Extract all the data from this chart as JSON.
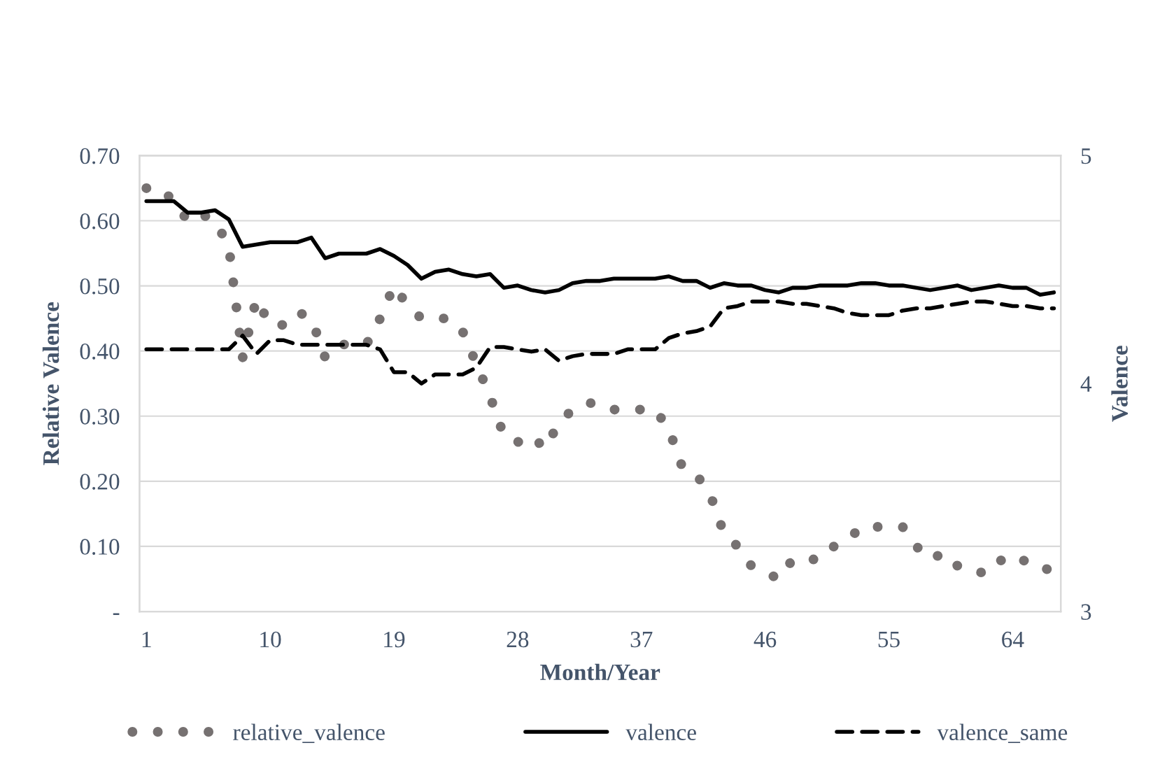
{
  "chart_data": {
    "type": "line",
    "xlabel": "Month/Year",
    "ylabel": "Relative Valence",
    "y2label": "Valence",
    "x": [
      1,
      2,
      3,
      4,
      5,
      6,
      7,
      8,
      9,
      10,
      11,
      12,
      13,
      14,
      15,
      16,
      17,
      18,
      19,
      20,
      21,
      22,
      23,
      24,
      25,
      26,
      27,
      28,
      29,
      30,
      31,
      32,
      33,
      34,
      35,
      36,
      37,
      38,
      39,
      40,
      41,
      42,
      43,
      44,
      45,
      46,
      47,
      48,
      49,
      50,
      51,
      52,
      53,
      54,
      55,
      56,
      57,
      58,
      59,
      60,
      61,
      62,
      63,
      64,
      65,
      66,
      67
    ],
    "xlim": [
      0.5,
      67.5
    ],
    "xticks": [
      1,
      10,
      19,
      28,
      37,
      46,
      55,
      64
    ],
    "ylim": [
      0,
      0.7
    ],
    "yticks": [
      {
        "value": 0,
        "label": "-"
      },
      {
        "value": 0.1,
        "label": "0.10"
      },
      {
        "value": 0.2,
        "label": "0.20"
      },
      {
        "value": 0.3,
        "label": "0.30"
      },
      {
        "value": 0.4,
        "label": "0.40"
      },
      {
        "value": 0.5,
        "label": "0.50"
      },
      {
        "value": 0.6,
        "label": "0.60"
      },
      {
        "value": 0.7,
        "label": "0.70"
      }
    ],
    "y2lim": [
      3,
      5
    ],
    "y2ticks": [
      3,
      4,
      5
    ],
    "grid": "y",
    "legend": "bottom",
    "series": [
      {
        "name": "relative_valence",
        "color": "#767171",
        "line_style": "dotted",
        "values": [
          0.65,
          0.65,
          0.63,
          0.6,
          0.61,
          0.6,
          0.56,
          0.39,
          0.48,
          0.44,
          0.44,
          0.46,
          0.45,
          0.39,
          0.41,
          0.41,
          0.41,
          0.45,
          0.5,
          0.47,
          0.45,
          0.45,
          0.45,
          0.43,
          0.38,
          0.33,
          0.27,
          0.26,
          0.27,
          0.25,
          0.29,
          0.31,
          0.32,
          0.32,
          0.31,
          0.31,
          0.31,
          0.31,
          0.28,
          0.22,
          0.21,
          0.18,
          0.12,
          0.1,
          0.07,
          0.06,
          0.05,
          0.08,
          0.08,
          0.08,
          0.1,
          0.11,
          0.13,
          0.13,
          0.13,
          0.13,
          0.1,
          0.08,
          0.09,
          0.07,
          0.06,
          0.06,
          0.08,
          0.07,
          0.08,
          0.07,
          0.06
        ]
      },
      {
        "name": "valence",
        "color": "#000000",
        "line_style": "solid",
        "axis": "y2",
        "values": [
          4.8,
          4.8,
          4.8,
          4.75,
          4.75,
          4.76,
          4.72,
          4.6,
          4.61,
          4.62,
          4.62,
          4.62,
          4.64,
          4.55,
          4.57,
          4.57,
          4.57,
          4.59,
          4.56,
          4.52,
          4.46,
          4.49,
          4.5,
          4.48,
          4.47,
          4.48,
          4.42,
          4.43,
          4.41,
          4.4,
          4.41,
          4.44,
          4.45,
          4.45,
          4.46,
          4.46,
          4.46,
          4.46,
          4.47,
          4.45,
          4.45,
          4.42,
          4.44,
          4.43,
          4.43,
          4.41,
          4.4,
          4.42,
          4.42,
          4.43,
          4.43,
          4.43,
          4.44,
          4.44,
          4.43,
          4.43,
          4.42,
          4.41,
          4.42,
          4.43,
          4.41,
          4.42,
          4.43,
          4.42,
          4.42,
          4.39,
          4.4
        ]
      },
      {
        "name": "valence_same",
        "color": "#000000",
        "line_style": "dashed",
        "axis": "y2",
        "values": [
          4.15,
          4.15,
          4.15,
          4.15,
          4.15,
          4.15,
          4.15,
          4.21,
          4.13,
          4.19,
          4.19,
          4.17,
          4.17,
          4.17,
          4.17,
          4.17,
          4.17,
          4.15,
          4.05,
          4.05,
          4.0,
          4.04,
          4.04,
          4.04,
          4.07,
          4.16,
          4.16,
          4.15,
          4.14,
          4.15,
          4.1,
          4.12,
          4.13,
          4.13,
          4.13,
          4.15,
          4.15,
          4.15,
          4.2,
          4.22,
          4.23,
          4.25,
          4.33,
          4.34,
          4.36,
          4.36,
          4.36,
          4.35,
          4.35,
          4.34,
          4.33,
          4.31,
          4.3,
          4.3,
          4.3,
          4.32,
          4.33,
          4.33,
          4.34,
          4.35,
          4.36,
          4.36,
          4.35,
          4.34,
          4.34,
          4.33,
          4.33
        ]
      }
    ]
  }
}
